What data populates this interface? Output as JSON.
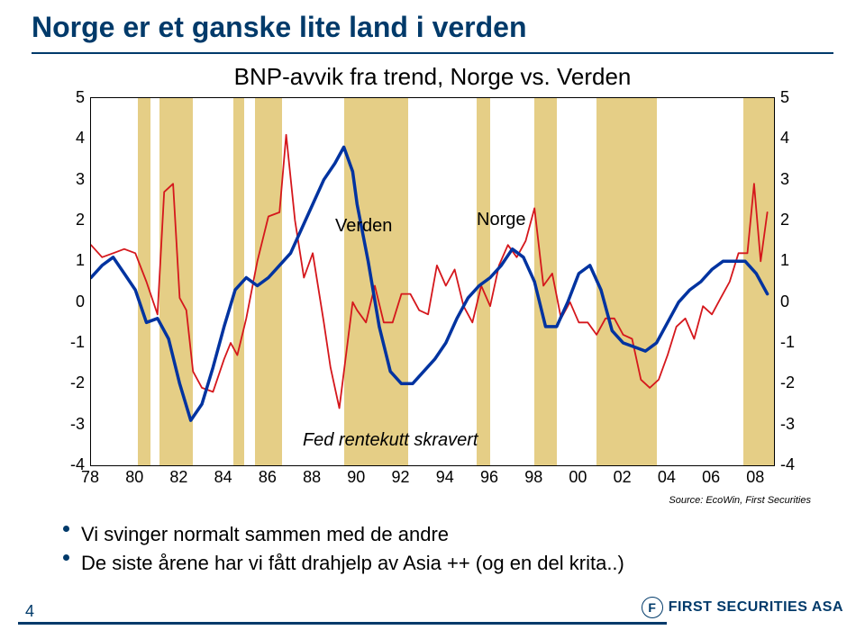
{
  "title": "Norge er et ganske lite land i verden",
  "chart": {
    "type": "line",
    "title": "BNP-avvik fra trend, Norge vs. Verden",
    "xlim": [
      78,
      "08.8"
    ],
    "ylim": [
      -4,
      5
    ],
    "ytick_step": 1,
    "x_ticks": [
      78,
      80,
      82,
      84,
      86,
      88,
      90,
      92,
      94,
      96,
      98,
      "00",
      "02",
      "04",
      "06",
      "08"
    ],
    "y_ticks_left": [
      5,
      4,
      3,
      2,
      1,
      0,
      -1,
      -2,
      -3,
      -4
    ],
    "y_ticks_right": [
      5,
      4,
      3,
      2,
      1,
      0,
      -1,
      -2,
      -3,
      -4
    ],
    "background_color": "#ffffff",
    "shade_color": "#e5ce86",
    "shaded_x_ranges": [
      [
        80.1,
        80.7
      ],
      [
        81.1,
        82.6
      ],
      [
        84.4,
        84.9
      ],
      [
        85.4,
        86.6
      ],
      [
        89.4,
        92.3
      ],
      [
        95.4,
        96.0
      ],
      [
        98.0,
        99.0
      ],
      [
        100.8,
        103.5
      ],
      [
        107.4,
        108.8
      ]
    ],
    "series": {
      "verden": {
        "label": "Verden",
        "label_pos_xy": [
          90.3,
          1.85
        ],
        "color": "#0033a0",
        "stroke_width": 3.5,
        "points": [
          [
            78,
            0.6
          ],
          [
            78.5,
            0.9
          ],
          [
            79,
            1.1
          ],
          [
            79.5,
            0.7
          ],
          [
            80,
            0.3
          ],
          [
            80.5,
            -0.5
          ],
          [
            81,
            -0.4
          ],
          [
            81.5,
            -0.9
          ],
          [
            82,
            -2.0
          ],
          [
            82.5,
            -2.9
          ],
          [
            83,
            -2.5
          ],
          [
            83.5,
            -1.6
          ],
          [
            84,
            -0.6
          ],
          [
            84.5,
            0.3
          ],
          [
            85,
            0.6
          ],
          [
            85.5,
            0.4
          ],
          [
            86,
            0.6
          ],
          [
            86.5,
            0.9
          ],
          [
            87,
            1.2
          ],
          [
            87.5,
            1.8
          ],
          [
            88,
            2.4
          ],
          [
            88.5,
            3.0
          ],
          [
            89,
            3.4
          ],
          [
            89.4,
            3.8
          ],
          [
            89.8,
            3.2
          ],
          [
            90,
            2.4
          ],
          [
            90.5,
            1.0
          ],
          [
            91,
            -0.6
          ],
          [
            91.5,
            -1.7
          ],
          [
            92,
            -2.0
          ],
          [
            92.5,
            -2.0
          ],
          [
            93,
            -1.7
          ],
          [
            93.5,
            -1.4
          ],
          [
            94,
            -1.0
          ],
          [
            94.5,
            -0.4
          ],
          [
            95,
            0.1
          ],
          [
            95.5,
            0.4
          ],
          [
            96,
            0.6
          ],
          [
            96.5,
            0.9
          ],
          [
            97,
            1.3
          ],
          [
            97.5,
            1.1
          ],
          [
            98,
            0.5
          ],
          [
            98.5,
            -0.6
          ],
          [
            99,
            -0.6
          ],
          [
            99.5,
            0.0
          ],
          [
            100,
            0.7
          ],
          [
            100.5,
            0.9
          ],
          [
            101,
            0.3
          ],
          [
            101.5,
            -0.7
          ],
          [
            102,
            -1.0
          ],
          [
            102.5,
            -1.1
          ],
          [
            103,
            -1.2
          ],
          [
            103.5,
            -1.0
          ],
          [
            104,
            -0.5
          ],
          [
            104.5,
            0.0
          ],
          [
            105,
            0.3
          ],
          [
            105.5,
            0.5
          ],
          [
            106,
            0.8
          ],
          [
            106.5,
            1.0
          ],
          [
            107,
            1.0
          ],
          [
            107.5,
            1.0
          ],
          [
            108,
            0.7
          ],
          [
            108.5,
            0.2
          ]
        ]
      },
      "norge": {
        "label": "Norge",
        "label_pos_xy": [
          96.5,
          2.0
        ],
        "color": "#d5171c",
        "stroke_width": 1.8,
        "points": [
          [
            78,
            1.4
          ],
          [
            78.5,
            1.1
          ],
          [
            79,
            1.2
          ],
          [
            79.5,
            1.3
          ],
          [
            80,
            1.2
          ],
          [
            80.5,
            0.5
          ],
          [
            81,
            -0.3
          ],
          [
            81.3,
            2.7
          ],
          [
            81.7,
            2.9
          ],
          [
            82,
            0.1
          ],
          [
            82.3,
            -0.2
          ],
          [
            82.6,
            -1.7
          ],
          [
            83,
            -2.1
          ],
          [
            83.5,
            -2.2
          ],
          [
            84,
            -1.4
          ],
          [
            84.3,
            -1.0
          ],
          [
            84.6,
            -1.3
          ],
          [
            85,
            -0.4
          ],
          [
            85.5,
            1.0
          ],
          [
            86,
            2.1
          ],
          [
            86.5,
            2.2
          ],
          [
            86.8,
            4.1
          ],
          [
            87.2,
            2.0
          ],
          [
            87.6,
            0.6
          ],
          [
            88,
            1.2
          ],
          [
            88.5,
            -0.5
          ],
          [
            88.8,
            -1.6
          ],
          [
            89.2,
            -2.6
          ],
          [
            89.5,
            -1.3
          ],
          [
            89.8,
            0.0
          ],
          [
            90,
            -0.2
          ],
          [
            90.4,
            -0.5
          ],
          [
            90.8,
            0.4
          ],
          [
            91.2,
            -0.5
          ],
          [
            91.6,
            -0.5
          ],
          [
            92,
            0.2
          ],
          [
            92.4,
            0.2
          ],
          [
            92.8,
            -0.2
          ],
          [
            93.2,
            -0.3
          ],
          [
            93.6,
            0.9
          ],
          [
            94,
            0.4
          ],
          [
            94.4,
            0.8
          ],
          [
            94.8,
            -0.1
          ],
          [
            95.2,
            -0.5
          ],
          [
            95.6,
            0.4
          ],
          [
            96,
            -0.1
          ],
          [
            96.4,
            0.9
          ],
          [
            96.8,
            1.4
          ],
          [
            97.2,
            1.1
          ],
          [
            97.6,
            1.5
          ],
          [
            98,
            2.3
          ],
          [
            98.4,
            0.4
          ],
          [
            98.8,
            0.7
          ],
          [
            99.2,
            -0.4
          ],
          [
            99.6,
            0.0
          ],
          [
            100,
            -0.5
          ],
          [
            100.4,
            -0.5
          ],
          [
            100.8,
            -0.8
          ],
          [
            101.2,
            -0.4
          ],
          [
            101.6,
            -0.4
          ],
          [
            102,
            -0.8
          ],
          [
            102.4,
            -0.9
          ],
          [
            102.8,
            -1.9
          ],
          [
            103.2,
            -2.1
          ],
          [
            103.6,
            -1.9
          ],
          [
            104,
            -1.3
          ],
          [
            104.4,
            -0.6
          ],
          [
            104.8,
            -0.4
          ],
          [
            105.2,
            -0.9
          ],
          [
            105.6,
            -0.1
          ],
          [
            106,
            -0.3
          ],
          [
            106.4,
            0.1
          ],
          [
            106.8,
            0.5
          ],
          [
            107.2,
            1.2
          ],
          [
            107.6,
            1.2
          ],
          [
            107.9,
            2.9
          ],
          [
            108.2,
            1.0
          ],
          [
            108.5,
            2.2
          ]
        ]
      }
    },
    "fed_caption": {
      "text": "Fed rentekutt skravert",
      "pos_xy": [
        91.5,
        -3.4
      ]
    }
  },
  "source": "Source: EcoWin, First Securities",
  "bullets": [
    "Vi svinger normalt sammen med de andre",
    "De siste årene har vi fått drahjelp av Asia ++ (og en del krita..)"
  ],
  "slide_number": "4",
  "logo_text": "FIRST SECURITIES ASA"
}
